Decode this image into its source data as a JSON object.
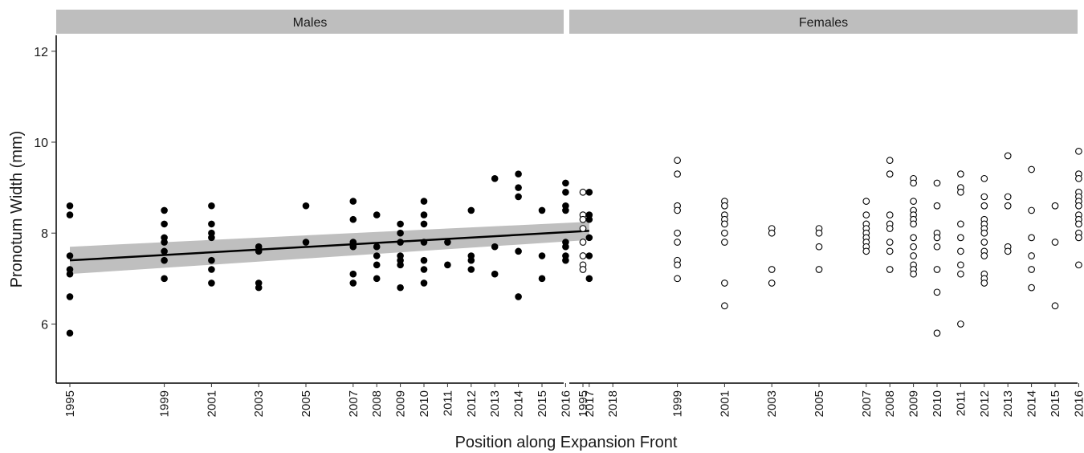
{
  "chart_data": {
    "type": "scatter",
    "xlabel": "Position along Expansion Front",
    "ylabel": "Pronotum Width (mm)",
    "ylim": [
      4.7,
      12.35
    ],
    "yticks": [
      6,
      8,
      10,
      12
    ],
    "x_categories": [
      "1995",
      "1999",
      "2001",
      "2003",
      "2005",
      "2007",
      "2008",
      "2009",
      "2010",
      "2011",
      "2012",
      "2013",
      "2014",
      "2015",
      "2016",
      "2017",
      "2018"
    ],
    "grid": false,
    "panels": [
      {
        "name": "Males",
        "marker": "filled-circle",
        "color": "#000000",
        "points": [
          {
            "x": "1995",
            "y": [
              8.6,
              8.4,
              7.5,
              7.2,
              7.1,
              6.6,
              5.8
            ]
          },
          {
            "x": "1999",
            "y": [
              8.5,
              8.2,
              7.9,
              7.8,
              7.6,
              7.4,
              7.0
            ]
          },
          {
            "x": "2001",
            "y": [
              8.6,
              8.2,
              8.0,
              7.9,
              7.4,
              7.2,
              6.9
            ]
          },
          {
            "x": "2003",
            "y": [
              7.7,
              7.6,
              6.9,
              6.8
            ]
          },
          {
            "x": "2005",
            "y": [
              8.6,
              7.8
            ]
          },
          {
            "x": "2007",
            "y": [
              8.7,
              8.3,
              7.8,
              7.75,
              7.7,
              7.1,
              6.9
            ]
          },
          {
            "x": "2008",
            "y": [
              8.4,
              7.7,
              7.5,
              7.3,
              7.0
            ]
          },
          {
            "x": "2009",
            "y": [
              8.2,
              8.0,
              7.8,
              7.5,
              7.4,
              7.3,
              6.8
            ]
          },
          {
            "x": "2010",
            "y": [
              8.7,
              8.4,
              8.2,
              7.8,
              7.4,
              7.2,
              6.9
            ]
          },
          {
            "x": "2011",
            "y": [
              7.8,
              7.3
            ]
          },
          {
            "x": "2012",
            "y": [
              8.5,
              7.5,
              7.4,
              7.2
            ]
          },
          {
            "x": "2013",
            "y": [
              9.2,
              7.7,
              7.1
            ]
          },
          {
            "x": "2014",
            "y": [
              9.3,
              9.0,
              8.8,
              7.6,
              6.6
            ]
          },
          {
            "x": "2015",
            "y": [
              8.5,
              7.5,
              7.0
            ]
          },
          {
            "x": "2016",
            "y": [
              9.1,
              8.9,
              8.6,
              8.5,
              7.8,
              7.7,
              7.5,
              7.4
            ]
          },
          {
            "x": "2017",
            "y": [
              8.9,
              8.4,
              8.3,
              7.9,
              7.5,
              7.0
            ]
          }
        ],
        "trend": {
          "x": [
            "1995",
            "2017"
          ],
          "y": [
            7.4,
            8.05
          ],
          "ci_lower": [
            7.1,
            7.85
          ],
          "ci_upper": [
            7.7,
            8.25
          ]
        }
      },
      {
        "name": "Females",
        "marker": "open-circle",
        "color": "#000000",
        "points": [
          {
            "x": "1995",
            "y": [
              8.9,
              8.4,
              8.3,
              8.1,
              7.8,
              7.5,
              7.3,
              7.2
            ]
          },
          {
            "x": "1999",
            "y": [
              9.6,
              9.3,
              8.6,
              8.5,
              8.0,
              7.8,
              7.4,
              7.3,
              7.0
            ]
          },
          {
            "x": "2001",
            "y": [
              8.7,
              8.6,
              8.4,
              8.3,
              8.2,
              8.0,
              7.8,
              6.9,
              6.4
            ]
          },
          {
            "x": "2003",
            "y": [
              8.1,
              8.0,
              7.2,
              6.9
            ]
          },
          {
            "x": "2005",
            "y": [
              8.1,
              8.0,
              7.7,
              7.2
            ]
          },
          {
            "x": "2007",
            "y": [
              8.7,
              8.4,
              8.2,
              8.1,
              8.0,
              7.9,
              7.8,
              7.7,
              7.6
            ]
          },
          {
            "x": "2008",
            "y": [
              9.6,
              9.3,
              8.4,
              8.2,
              8.1,
              7.8,
              7.6,
              7.2
            ]
          },
          {
            "x": "2009",
            "y": [
              9.2,
              9.1,
              8.7,
              8.5,
              8.4,
              8.3,
              8.2,
              7.9,
              7.7,
              7.5,
              7.3,
              7.2,
              7.1
            ]
          },
          {
            "x": "2010",
            "y": [
              9.1,
              8.6,
              8.0,
              7.9,
              7.7,
              7.2,
              6.7,
              5.8
            ]
          },
          {
            "x": "2011",
            "y": [
              9.3,
              9.0,
              8.9,
              8.2,
              7.9,
              7.6,
              7.3,
              7.1,
              6.0
            ]
          },
          {
            "x": "2012",
            "y": [
              9.2,
              8.8,
              8.6,
              8.3,
              8.2,
              8.1,
              8.0,
              7.8,
              7.6,
              7.5,
              7.1,
              7.0,
              6.9
            ]
          },
          {
            "x": "2013",
            "y": [
              9.7,
              8.8,
              8.6,
              7.7,
              7.6
            ]
          },
          {
            "x": "2014",
            "y": [
              9.4,
              8.5,
              7.9,
              7.5,
              7.2,
              6.8
            ]
          },
          {
            "x": "2015",
            "y": [
              8.6,
              7.8,
              6.4
            ]
          },
          {
            "x": "2016",
            "y": [
              9.8,
              9.3,
              9.2,
              8.9,
              8.8,
              8.7,
              8.6,
              8.4,
              8.3,
              8.2,
              8.0,
              7.9,
              7.3
            ]
          },
          {
            "x": "2017",
            "y": [
              8.4,
              7.9,
              7.8,
              7.2,
              7.0,
              6.9
            ]
          },
          {
            "x": "2018",
            "y": [
              8.0,
              7.8
            ]
          }
        ]
      }
    ],
    "colors": {
      "strip_bg": "#bebebe",
      "ribbon": "#bfbfbf",
      "axis": "#000000"
    }
  }
}
